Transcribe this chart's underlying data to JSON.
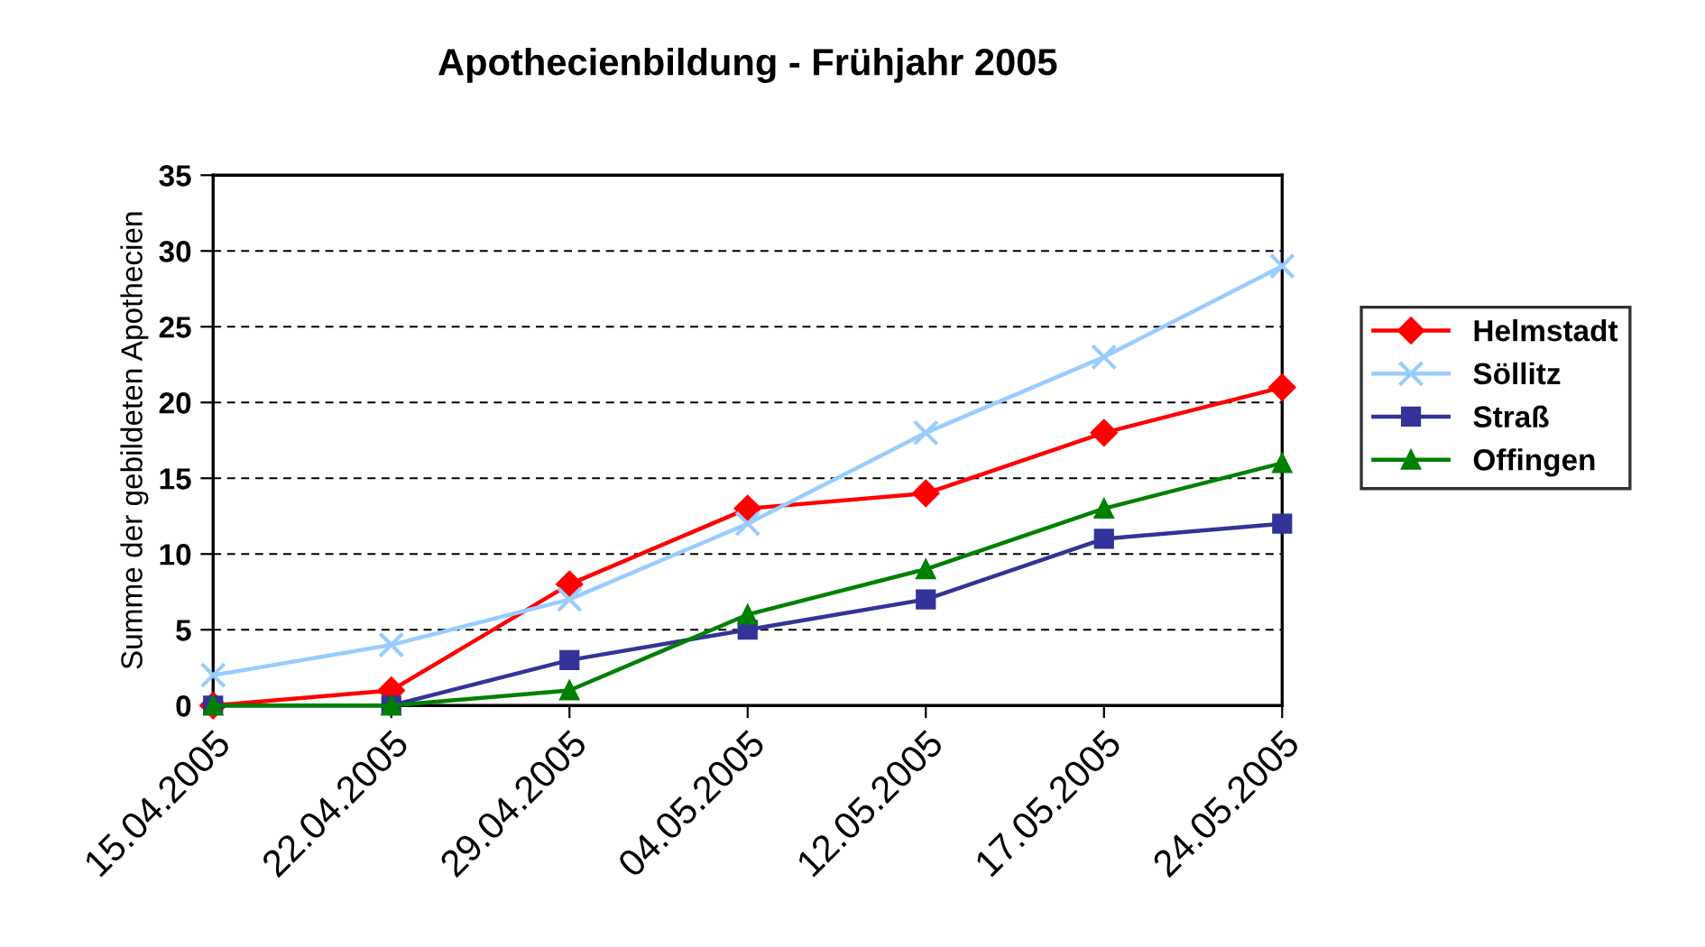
{
  "chart_data": {
    "type": "line",
    "title": "Apothecienbildung - Frühjahr 2005",
    "ylabel": "Summe der gebildeten Apothecien",
    "categories": [
      "15.04.2005",
      "22.04.2005",
      "29.04.2005",
      "04.05.2005",
      "12.05.2005",
      "17.05.2005",
      "24.05.2005"
    ],
    "series": [
      {
        "name": "Helmstadt",
        "color": "#ff0000",
        "marker": "diamond",
        "values": [
          0,
          1,
          8,
          13,
          14,
          18,
          21
        ]
      },
      {
        "name": "Söllitz",
        "color": "#99ccff",
        "marker": "cross",
        "values": [
          2,
          4,
          7,
          12,
          18,
          23,
          29
        ]
      },
      {
        "name": "Straß",
        "color": "#333399",
        "marker": "square",
        "values": [
          0,
          0,
          3,
          5,
          7,
          11,
          12
        ]
      },
      {
        "name": "Offingen",
        "color": "#008000",
        "marker": "triangle",
        "values": [
          0,
          0,
          1,
          6,
          9,
          13,
          16
        ]
      }
    ],
    "ylim": [
      0,
      35
    ],
    "yticks": [
      0,
      5,
      10,
      15,
      20,
      25,
      30,
      35
    ],
    "grid": "y",
    "line_style": "solid",
    "legend": "right"
  }
}
